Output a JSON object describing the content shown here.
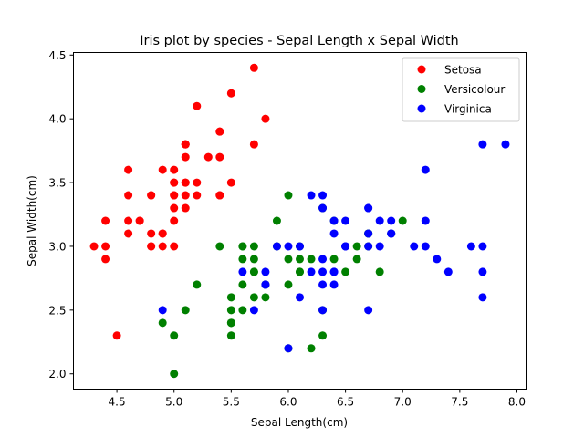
{
  "chart_data": {
    "type": "scatter",
    "title": "Iris plot by species - Sepal Length x Sepal Width",
    "xlabel": "Sepal Length(cm)",
    "ylabel": "Sepal Width(cm)",
    "xlim": [
      4.12,
      8.08
    ],
    "ylim": [
      1.88,
      4.52
    ],
    "xticks": [
      "4.5",
      "5.0",
      "5.5",
      "6.0",
      "6.5",
      "7.0",
      "7.5",
      "8.0"
    ],
    "yticks": [
      "2.0",
      "2.5",
      "3.0",
      "3.5",
      "4.0",
      "4.5"
    ],
    "grid": false,
    "legend_position": "top-right",
    "series": [
      {
        "name": "Setosa",
        "color": "#ff0000",
        "points": [
          [
            5.1,
            3.5
          ],
          [
            4.9,
            3.0
          ],
          [
            4.7,
            3.2
          ],
          [
            4.6,
            3.1
          ],
          [
            5.0,
            3.6
          ],
          [
            5.4,
            3.9
          ],
          [
            4.6,
            3.4
          ],
          [
            5.0,
            3.4
          ],
          [
            4.4,
            2.9
          ],
          [
            4.9,
            3.1
          ],
          [
            5.4,
            3.7
          ],
          [
            4.8,
            3.4
          ],
          [
            4.8,
            3.0
          ],
          [
            4.3,
            3.0
          ],
          [
            5.8,
            4.0
          ],
          [
            5.7,
            4.4
          ],
          [
            5.4,
            3.9
          ],
          [
            5.1,
            3.5
          ],
          [
            5.7,
            3.8
          ],
          [
            5.1,
            3.8
          ],
          [
            5.4,
            3.4
          ],
          [
            5.1,
            3.7
          ],
          [
            4.6,
            3.6
          ],
          [
            5.1,
            3.3
          ],
          [
            4.8,
            3.4
          ],
          [
            5.0,
            3.0
          ],
          [
            5.0,
            3.4
          ],
          [
            5.2,
            3.5
          ],
          [
            5.2,
            3.4
          ],
          [
            4.7,
            3.2
          ],
          [
            4.8,
            3.1
          ],
          [
            5.4,
            3.4
          ],
          [
            5.2,
            4.1
          ],
          [
            5.5,
            4.2
          ],
          [
            4.9,
            3.1
          ],
          [
            5.0,
            3.2
          ],
          [
            5.5,
            3.5
          ],
          [
            4.9,
            3.6
          ],
          [
            4.4,
            3.0
          ],
          [
            5.1,
            3.4
          ],
          [
            5.0,
            3.5
          ],
          [
            4.5,
            2.3
          ],
          [
            4.4,
            3.2
          ],
          [
            5.0,
            3.5
          ],
          [
            5.1,
            3.8
          ],
          [
            4.8,
            3.0
          ],
          [
            5.1,
            3.8
          ],
          [
            4.6,
            3.2
          ],
          [
            5.3,
            3.7
          ],
          [
            5.0,
            3.3
          ]
        ]
      },
      {
        "name": "Versicolour",
        "color": "#008000",
        "points": [
          [
            7.0,
            3.2
          ],
          [
            6.4,
            3.2
          ],
          [
            6.9,
            3.1
          ],
          [
            5.5,
            2.3
          ],
          [
            6.5,
            2.8
          ],
          [
            5.7,
            2.8
          ],
          [
            6.3,
            3.3
          ],
          [
            4.9,
            2.4
          ],
          [
            6.6,
            2.9
          ],
          [
            5.2,
            2.7
          ],
          [
            5.0,
            2.0
          ],
          [
            5.9,
            3.0
          ],
          [
            6.0,
            2.2
          ],
          [
            6.1,
            2.9
          ],
          [
            5.6,
            2.9
          ],
          [
            6.7,
            3.1
          ],
          [
            5.6,
            3.0
          ],
          [
            5.8,
            2.7
          ],
          [
            6.2,
            2.2
          ],
          [
            5.6,
            2.5
          ],
          [
            5.9,
            3.2
          ],
          [
            6.1,
            2.8
          ],
          [
            6.3,
            2.5
          ],
          [
            6.1,
            2.8
          ],
          [
            6.4,
            2.9
          ],
          [
            6.6,
            3.0
          ],
          [
            6.8,
            2.8
          ],
          [
            6.7,
            3.0
          ],
          [
            6.0,
            2.9
          ],
          [
            5.7,
            2.6
          ],
          [
            5.5,
            2.4
          ],
          [
            5.5,
            2.4
          ],
          [
            5.8,
            2.7
          ],
          [
            6.0,
            2.7
          ],
          [
            5.4,
            3.0
          ],
          [
            6.0,
            3.4
          ],
          [
            6.7,
            3.1
          ],
          [
            6.3,
            2.3
          ],
          [
            5.6,
            3.0
          ],
          [
            5.5,
            2.5
          ],
          [
            5.5,
            2.6
          ],
          [
            6.1,
            3.0
          ],
          [
            5.8,
            2.6
          ],
          [
            5.0,
            2.3
          ],
          [
            5.6,
            2.7
          ],
          [
            5.7,
            3.0
          ],
          [
            5.7,
            2.9
          ],
          [
            6.2,
            2.9
          ],
          [
            5.1,
            2.5
          ],
          [
            5.7,
            2.8
          ]
        ]
      },
      {
        "name": "Virginica",
        "color": "#0000ff",
        "points": [
          [
            6.3,
            3.3
          ],
          [
            5.8,
            2.7
          ],
          [
            7.1,
            3.0
          ],
          [
            6.3,
            2.9
          ],
          [
            6.5,
            3.0
          ],
          [
            7.6,
            3.0
          ],
          [
            4.9,
            2.5
          ],
          [
            7.3,
            2.9
          ],
          [
            6.7,
            2.5
          ],
          [
            7.2,
            3.6
          ],
          [
            6.5,
            3.2
          ],
          [
            6.4,
            2.7
          ],
          [
            6.8,
            3.0
          ],
          [
            5.7,
            2.5
          ],
          [
            5.8,
            2.8
          ],
          [
            6.4,
            3.2
          ],
          [
            6.5,
            3.0
          ],
          [
            7.7,
            3.8
          ],
          [
            7.7,
            2.6
          ],
          [
            6.0,
            2.2
          ],
          [
            6.9,
            3.2
          ],
          [
            5.6,
            2.8
          ],
          [
            7.7,
            2.8
          ],
          [
            6.3,
            2.7
          ],
          [
            6.7,
            3.3
          ],
          [
            7.2,
            3.2
          ],
          [
            6.2,
            2.8
          ],
          [
            6.1,
            3.0
          ],
          [
            6.4,
            2.8
          ],
          [
            7.2,
            3.0
          ],
          [
            7.4,
            2.8
          ],
          [
            7.9,
            3.8
          ],
          [
            6.4,
            2.8
          ],
          [
            6.3,
            2.8
          ],
          [
            6.1,
            2.6
          ],
          [
            7.7,
            3.0
          ],
          [
            6.3,
            3.4
          ],
          [
            6.4,
            3.1
          ],
          [
            6.0,
            3.0
          ],
          [
            6.9,
            3.1
          ],
          [
            6.7,
            3.1
          ],
          [
            6.9,
            3.1
          ],
          [
            5.8,
            2.7
          ],
          [
            6.8,
            3.2
          ],
          [
            6.7,
            3.3
          ],
          [
            6.7,
            3.0
          ],
          [
            6.3,
            2.5
          ],
          [
            6.5,
            3.0
          ],
          [
            6.2,
            3.4
          ],
          [
            5.9,
            3.0
          ]
        ]
      }
    ]
  }
}
